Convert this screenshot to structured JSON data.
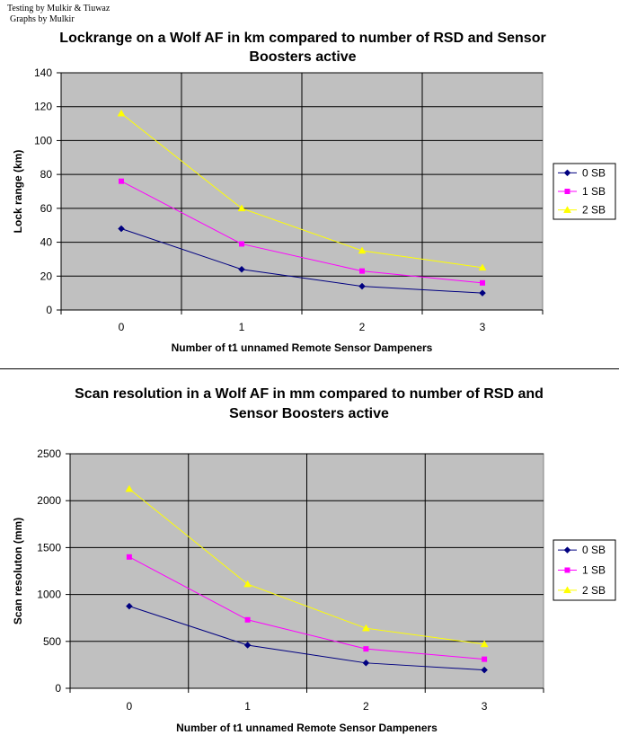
{
  "credits": {
    "line1": "Testing by Mulkir & Tiuwaz",
    "line2": "Graphs by Mulkir"
  },
  "chart_data": [
    {
      "type": "line",
      "title_line1": "Lockrange on a Wolf AF in km compared to number of RSD and Sensor",
      "title_line2": "Boosters  active",
      "xlabel": "Number of t1 unnamed Remote Sensor Dampeners",
      "ylabel": "Lock range (km)",
      "categories": [
        "0",
        "1",
        "2",
        "3"
      ],
      "ylim": [
        0,
        140
      ],
      "yticks": [
        "0",
        "20",
        "40",
        "60",
        "80",
        "100",
        "120",
        "140"
      ],
      "grid": true,
      "legend_position": "right",
      "series": [
        {
          "name": "0 SB",
          "color": "#000080",
          "marker": "diamond",
          "values": [
            48,
            24,
            14,
            10
          ]
        },
        {
          "name": "1 SB",
          "color": "#FF00FF",
          "marker": "square",
          "values": [
            76,
            39,
            23,
            16
          ]
        },
        {
          "name": "2 SB",
          "color": "#FFFF00",
          "marker": "triangle",
          "values": [
            116,
            60,
            35,
            25
          ]
        }
      ]
    },
    {
      "type": "line",
      "title_line1": "Scan resolution in a Wolf AF in mm compared to number of RSD and",
      "title_line2": "Sensor Boosters active",
      "xlabel": "Number of t1 unnamed Remote Sensor Dampeners",
      "ylabel": "Scan resoluton (mm)",
      "categories": [
        "0",
        "1",
        "2",
        "3"
      ],
      "ylim": [
        0,
        2500
      ],
      "yticks": [
        "0",
        "500",
        "1000",
        "1500",
        "2000",
        "2500"
      ],
      "grid": true,
      "legend_position": "right",
      "series": [
        {
          "name": "0 SB",
          "color": "#000080",
          "marker": "diamond",
          "values": [
            875,
            460,
            270,
            195
          ]
        },
        {
          "name": "1 SB",
          "color": "#FF00FF",
          "marker": "square",
          "values": [
            1400,
            730,
            420,
            310
          ]
        },
        {
          "name": "2 SB",
          "color": "#FFFF00",
          "marker": "triangle",
          "values": [
            2125,
            1110,
            640,
            470
          ]
        }
      ]
    }
  ]
}
